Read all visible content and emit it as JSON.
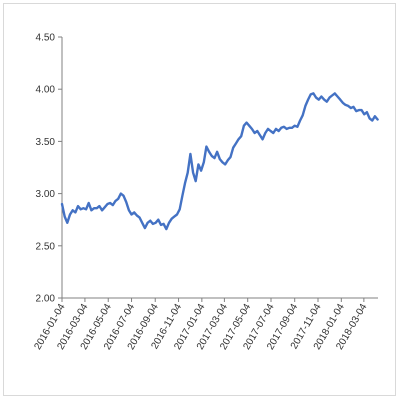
{
  "chart_data": {
    "type": "line",
    "title": "",
    "xlabel": "",
    "ylabel": "",
    "ylim": [
      2.0,
      4.5
    ],
    "yticks": [
      "2.00",
      "2.50",
      "3.00",
      "3.50",
      "4.00",
      "4.50"
    ],
    "xticks": [
      "2016-01-04",
      "2016-03-04",
      "2016-05-04",
      "2016-07-04",
      "2016-09-04",
      "2016-11-04",
      "2017-01-04",
      "2017-03-04",
      "2017-05-04",
      "2017-07-04",
      "2017-09-04",
      "2017-11-04",
      "2018-01-04",
      "2018-03-04"
    ],
    "xlim": [
      "2016-01-04",
      "2018-04-10"
    ],
    "grid": false,
    "legend": "none",
    "colors": {
      "line": "#4472c4",
      "axis": "#808080",
      "text": "#333333"
    },
    "series": [
      {
        "color": "#4472c4",
        "points": [
          [
            "2016-01-04",
            2.9
          ],
          [
            "2016-01-11",
            2.78
          ],
          [
            "2016-01-18",
            2.72
          ],
          [
            "2016-01-25",
            2.8
          ],
          [
            "2016-02-01",
            2.84
          ],
          [
            "2016-02-08",
            2.82
          ],
          [
            "2016-02-15",
            2.88
          ],
          [
            "2016-02-22",
            2.85
          ],
          [
            "2016-02-29",
            2.86
          ],
          [
            "2016-03-07",
            2.85
          ],
          [
            "2016-03-14",
            2.91
          ],
          [
            "2016-03-21",
            2.84
          ],
          [
            "2016-03-28",
            2.86
          ],
          [
            "2016-04-04",
            2.86
          ],
          [
            "2016-04-11",
            2.88
          ],
          [
            "2016-04-18",
            2.84
          ],
          [
            "2016-04-25",
            2.87
          ],
          [
            "2016-05-02",
            2.9
          ],
          [
            "2016-05-09",
            2.91
          ],
          [
            "2016-05-16",
            2.89
          ],
          [
            "2016-05-23",
            2.93
          ],
          [
            "2016-05-30",
            2.95
          ],
          [
            "2016-06-06",
            3.0
          ],
          [
            "2016-06-13",
            2.98
          ],
          [
            "2016-06-20",
            2.92
          ],
          [
            "2016-06-27",
            2.84
          ],
          [
            "2016-07-04",
            2.8
          ],
          [
            "2016-07-11",
            2.82
          ],
          [
            "2016-07-18",
            2.79
          ],
          [
            "2016-07-25",
            2.77
          ],
          [
            "2016-08-01",
            2.72
          ],
          [
            "2016-08-08",
            2.67
          ],
          [
            "2016-08-15",
            2.72
          ],
          [
            "2016-08-22",
            2.74
          ],
          [
            "2016-08-29",
            2.71
          ],
          [
            "2016-09-05",
            2.72
          ],
          [
            "2016-09-12",
            2.75
          ],
          [
            "2016-09-19",
            2.7
          ],
          [
            "2016-09-26",
            2.71
          ],
          [
            "2016-10-03",
            2.66
          ],
          [
            "2016-10-10",
            2.72
          ],
          [
            "2016-10-17",
            2.76
          ],
          [
            "2016-10-24",
            2.78
          ],
          [
            "2016-10-31",
            2.8
          ],
          [
            "2016-11-07",
            2.85
          ],
          [
            "2016-11-14",
            2.98
          ],
          [
            "2016-11-21",
            3.1
          ],
          [
            "2016-11-28",
            3.2
          ],
          [
            "2016-12-05",
            3.38
          ],
          [
            "2016-12-12",
            3.2
          ],
          [
            "2016-12-19",
            3.12
          ],
          [
            "2016-12-26",
            3.28
          ],
          [
            "2017-01-02",
            3.22
          ],
          [
            "2017-01-09",
            3.3
          ],
          [
            "2017-01-16",
            3.45
          ],
          [
            "2017-01-23",
            3.4
          ],
          [
            "2017-01-30",
            3.36
          ],
          [
            "2017-02-06",
            3.34
          ],
          [
            "2017-02-13",
            3.4
          ],
          [
            "2017-02-20",
            3.33
          ],
          [
            "2017-02-27",
            3.3
          ],
          [
            "2017-03-06",
            3.28
          ],
          [
            "2017-03-13",
            3.32
          ],
          [
            "2017-03-20",
            3.35
          ],
          [
            "2017-03-27",
            3.44
          ],
          [
            "2017-04-03",
            3.48
          ],
          [
            "2017-04-10",
            3.52
          ],
          [
            "2017-04-17",
            3.55
          ],
          [
            "2017-04-24",
            3.65
          ],
          [
            "2017-05-01",
            3.68
          ],
          [
            "2017-05-08",
            3.65
          ],
          [
            "2017-05-15",
            3.62
          ],
          [
            "2017-05-22",
            3.58
          ],
          [
            "2017-05-29",
            3.6
          ],
          [
            "2017-06-05",
            3.56
          ],
          [
            "2017-06-12",
            3.52
          ],
          [
            "2017-06-19",
            3.58
          ],
          [
            "2017-06-26",
            3.62
          ],
          [
            "2017-07-03",
            3.6
          ],
          [
            "2017-07-10",
            3.58
          ],
          [
            "2017-07-17",
            3.62
          ],
          [
            "2017-07-24",
            3.6
          ],
          [
            "2017-07-31",
            3.63
          ],
          [
            "2017-08-07",
            3.64
          ],
          [
            "2017-08-14",
            3.62
          ],
          [
            "2017-08-21",
            3.63
          ],
          [
            "2017-08-28",
            3.63
          ],
          [
            "2017-09-04",
            3.65
          ],
          [
            "2017-09-11",
            3.64
          ],
          [
            "2017-09-18",
            3.7
          ],
          [
            "2017-09-25",
            3.75
          ],
          [
            "2017-10-02",
            3.84
          ],
          [
            "2017-10-09",
            3.9
          ],
          [
            "2017-10-16",
            3.95
          ],
          [
            "2017-10-23",
            3.96
          ],
          [
            "2017-10-30",
            3.92
          ],
          [
            "2017-11-06",
            3.9
          ],
          [
            "2017-11-13",
            3.93
          ],
          [
            "2017-11-20",
            3.9
          ],
          [
            "2017-11-27",
            3.88
          ],
          [
            "2017-12-04",
            3.92
          ],
          [
            "2017-12-11",
            3.94
          ],
          [
            "2017-12-18",
            3.96
          ],
          [
            "2017-12-25",
            3.93
          ],
          [
            "2018-01-01",
            3.9
          ],
          [
            "2018-01-08",
            3.87
          ],
          [
            "2018-01-15",
            3.85
          ],
          [
            "2018-01-22",
            3.84
          ],
          [
            "2018-01-29",
            3.82
          ],
          [
            "2018-02-05",
            3.83
          ],
          [
            "2018-02-12",
            3.79
          ],
          [
            "2018-02-19",
            3.8
          ],
          [
            "2018-02-26",
            3.8
          ],
          [
            "2018-03-05",
            3.76
          ],
          [
            "2018-03-12",
            3.78
          ],
          [
            "2018-03-19",
            3.72
          ],
          [
            "2018-03-26",
            3.7
          ],
          [
            "2018-04-02",
            3.74
          ],
          [
            "2018-04-09",
            3.71
          ]
        ]
      }
    ]
  }
}
